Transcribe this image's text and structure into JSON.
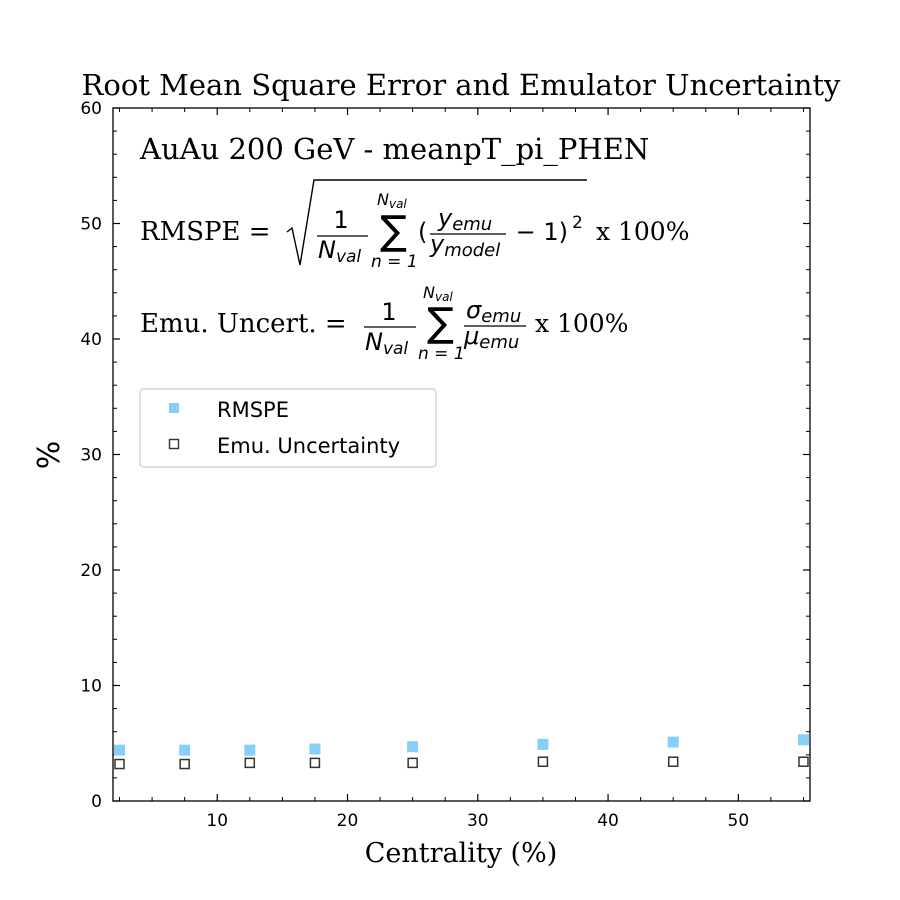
{
  "chart_data": {
    "type": "scatter",
    "title": "Root Mean Square Error and Emulator Uncertainty",
    "xlabel": "Centrality (%)",
    "ylabel": "%",
    "xlim": [
      2,
      55.5
    ],
    "ylim": [
      0,
      60
    ],
    "xticks": [
      10,
      20,
      30,
      40,
      50
    ],
    "yticks": [
      0,
      10,
      20,
      30,
      40,
      50,
      60
    ],
    "annotation_header": "AuAu 200 GeV  -  meanpT_pi_PHEN",
    "formula_rmspe": {
      "lhs": "RMSPE = ",
      "num": "1",
      "den_N": "N",
      "den_sub": "val",
      "sum_top_N": "N",
      "sum_top_sub": "val",
      "sum_bottom": "n = 1",
      "paren_open": "(",
      "frac_num_y": "y",
      "frac_num_sub": "emu",
      "frac_den_y": "y",
      "frac_den_sub": "model",
      "minus_one": " − 1)",
      "exponent": "2",
      "suffix": " x 100%"
    },
    "formula_uncert": {
      "lhs": "Emu. Uncert. = ",
      "num": "1",
      "den_N": "N",
      "den_sub": "val",
      "sum_top_N": "N",
      "sum_top_sub": "val",
      "sum_bottom": "n = 1",
      "frac_num_sym": "σ",
      "frac_num_sub": "emu",
      "frac_den_sym": "μ",
      "frac_den_sub": "emu",
      "suffix": " x 100%"
    },
    "legend_position": "upper-left",
    "series": [
      {
        "name": "RMSPE",
        "marker": "square-filled",
        "color": "#87cefa",
        "x": [
          2.5,
          7.5,
          12.5,
          17.5,
          25,
          35,
          45,
          55
        ],
        "y": [
          4.4,
          4.4,
          4.4,
          4.5,
          4.7,
          4.9,
          5.1,
          5.3
        ]
      },
      {
        "name": "Emu. Uncertainty",
        "marker": "square-open",
        "color": "#333333",
        "x": [
          2.5,
          7.5,
          12.5,
          17.5,
          25,
          35,
          45,
          55
        ],
        "y": [
          3.2,
          3.2,
          3.3,
          3.3,
          3.3,
          3.4,
          3.4,
          3.4
        ]
      }
    ]
  }
}
